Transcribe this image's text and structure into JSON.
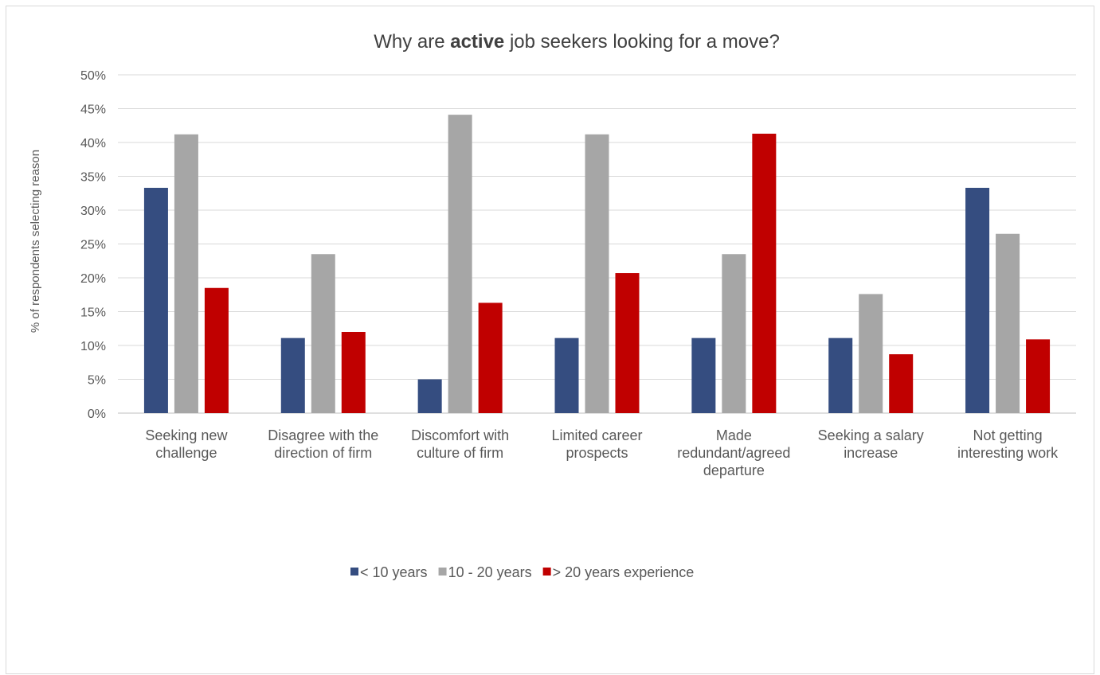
{
  "chart_data": {
    "type": "bar",
    "title_prefix": "Why are ",
    "title_emphasis": "active",
    "title_suffix": " job seekers looking for a move?",
    "ylabel": "% of respondents selecting reason",
    "ylim": [
      0,
      50
    ],
    "ytick_step": 5,
    "ytick_labels": [
      "0%",
      "5%",
      "10%",
      "15%",
      "20%",
      "25%",
      "30%",
      "35%",
      "40%",
      "45%",
      "50%"
    ],
    "grid": true,
    "legend_position": "bottom",
    "categories": [
      [
        "Seeking new",
        "challenge"
      ],
      [
        "Disagree with the",
        "direction of firm"
      ],
      [
        "Discomfort with",
        "culture of firm"
      ],
      [
        "Limited career",
        "prospects"
      ],
      [
        "Made",
        "redundant/agreed",
        "departure"
      ],
      [
        "Seeking a salary",
        "increase"
      ],
      [
        "Not getting",
        "interesting work"
      ]
    ],
    "series": [
      {
        "name": "< 10 years",
        "color": "#354d80",
        "values": [
          33.3,
          11.1,
          5.0,
          11.1,
          11.1,
          11.1,
          33.3
        ]
      },
      {
        "name": "10 - 20 years",
        "color": "#a6a6a6",
        "values": [
          41.2,
          23.5,
          44.1,
          41.2,
          23.5,
          17.6,
          26.5
        ]
      },
      {
        "name": "> 20 years experience",
        "color": "#c00000",
        "values": [
          18.5,
          12.0,
          16.3,
          20.7,
          41.3,
          8.7,
          10.9
        ]
      }
    ]
  }
}
